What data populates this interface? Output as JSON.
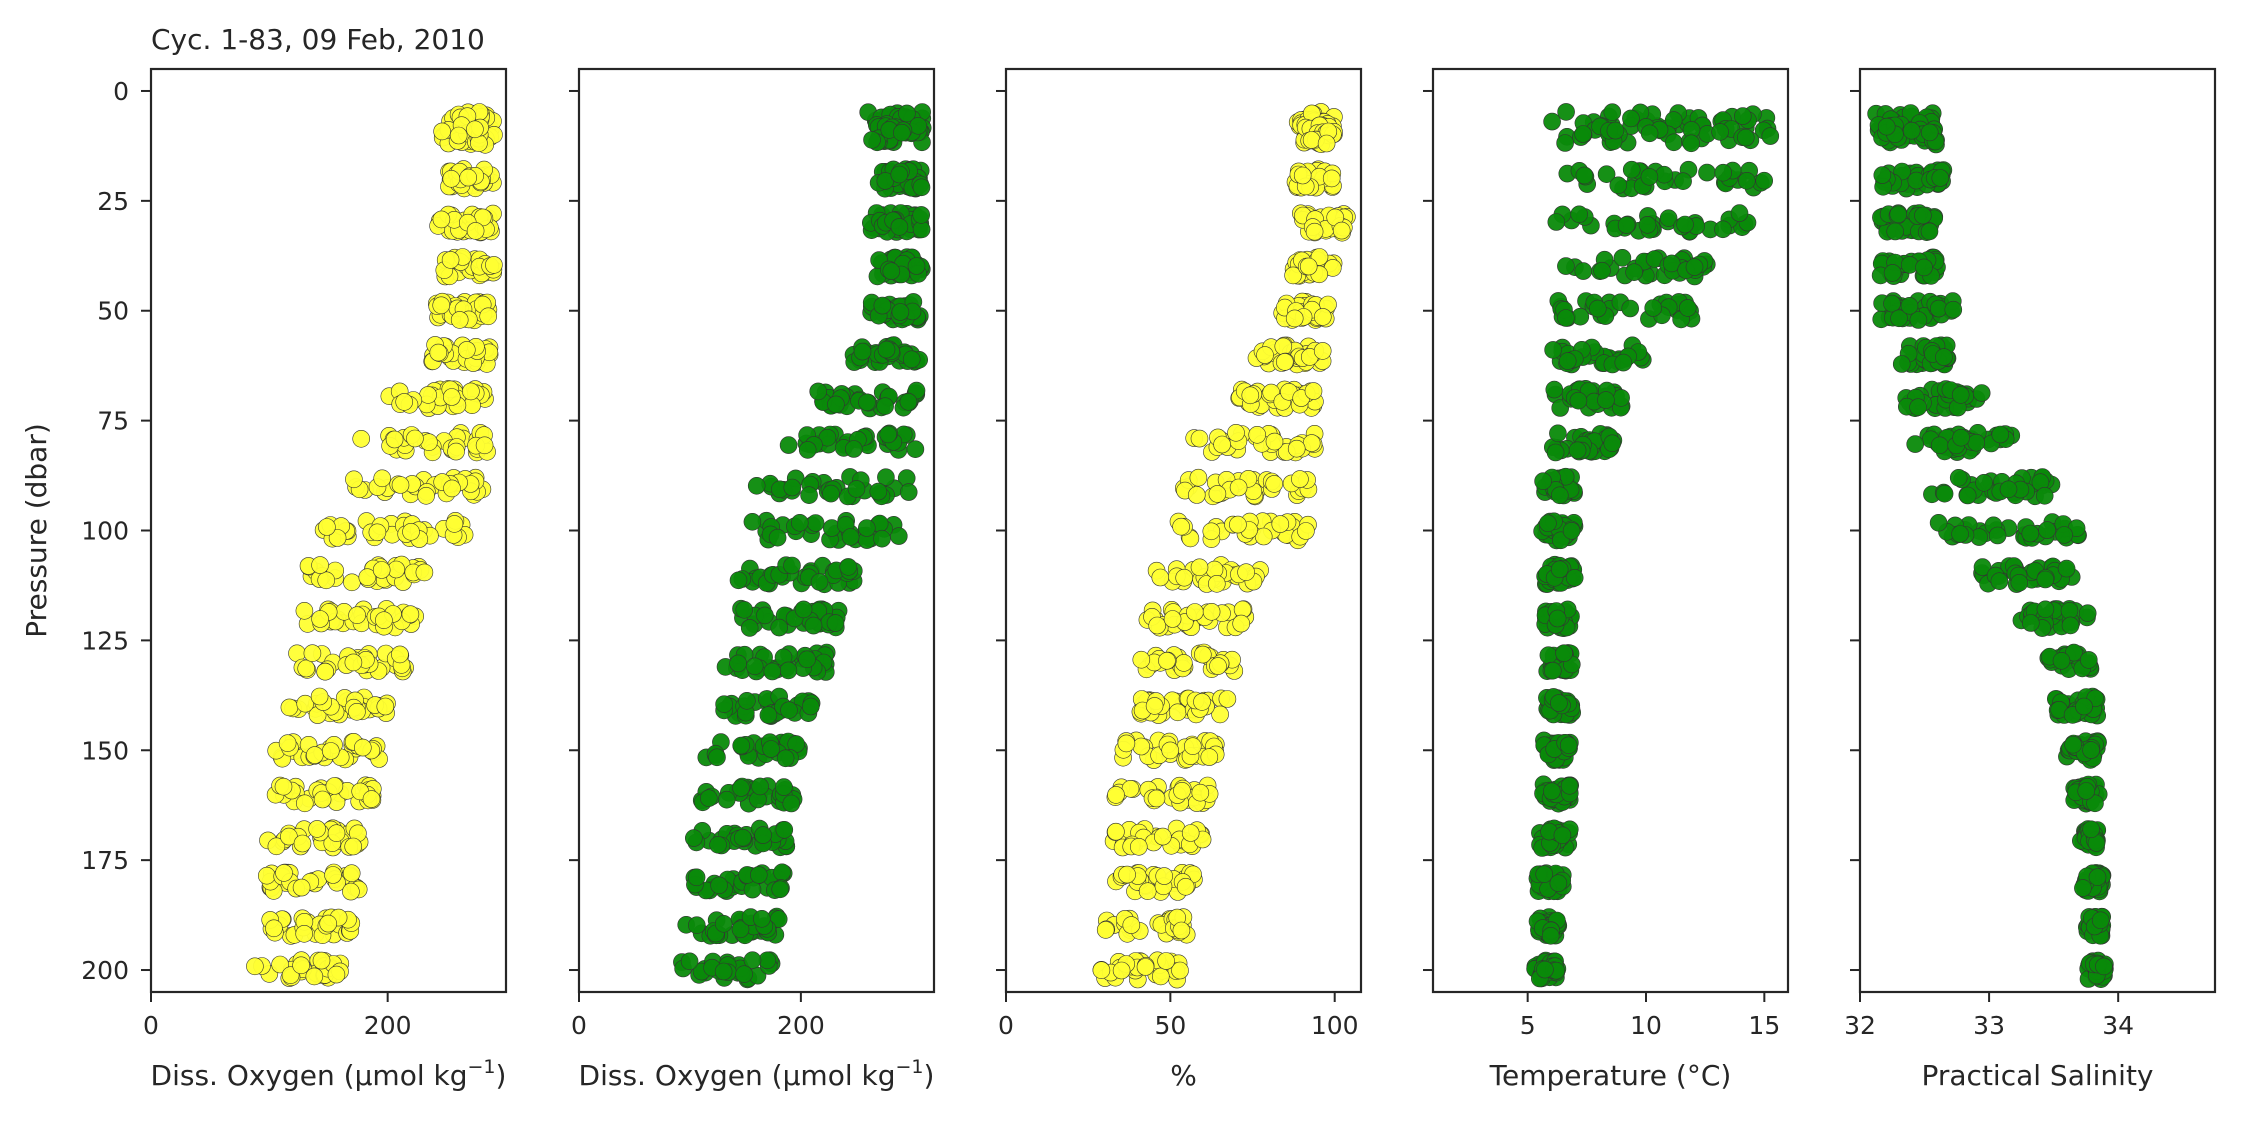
{
  "chart_data": [
    {
      "panel": 1,
      "type": "scatter",
      "title": "Cyc. 1-83, 09 Feb, 2010",
      "xlabel_main": "Diss. Oxygen (µmol kg",
      "xlabel_sup": "−1",
      "xlabel_close": ")",
      "ylabel": "Pressure (dbar)",
      "xlim": [
        0,
        300
      ],
      "ylim": [
        205,
        -5
      ],
      "xticks": [
        0,
        200
      ],
      "yticks": [
        0,
        25,
        50,
        75,
        100,
        125,
        150,
        175,
        200
      ],
      "color": "#ffff33",
      "levels": [
        {
          "p": 7,
          "min": 245,
          "max": 290
        },
        {
          "p": 10,
          "min": 245,
          "max": 290
        },
        {
          "p": 20,
          "min": 245,
          "max": 290
        },
        {
          "p": 30,
          "min": 240,
          "max": 290
        },
        {
          "p": 40,
          "min": 245,
          "max": 290
        },
        {
          "p": 50,
          "min": 240,
          "max": 288
        },
        {
          "p": 60,
          "min": 225,
          "max": 288
        },
        {
          "p": 70,
          "min": 200,
          "max": 285
        },
        {
          "p": 80,
          "min": 175,
          "max": 285
        },
        {
          "p": 90,
          "min": 155,
          "max": 282
        },
        {
          "p": 100,
          "min": 145,
          "max": 268
        },
        {
          "p": 110,
          "min": 130,
          "max": 235
        },
        {
          "p": 120,
          "min": 125,
          "max": 225
        },
        {
          "p": 130,
          "min": 120,
          "max": 215
        },
        {
          "p": 140,
          "min": 115,
          "max": 205
        },
        {
          "p": 150,
          "min": 105,
          "max": 195
        },
        {
          "p": 160,
          "min": 100,
          "max": 190
        },
        {
          "p": 170,
          "min": 95,
          "max": 180
        },
        {
          "p": 180,
          "min": 95,
          "max": 180
        },
        {
          "p": 190,
          "min": 90,
          "max": 170
        },
        {
          "p": 200,
          "min": 85,
          "max": 160
        }
      ]
    },
    {
      "panel": 2,
      "type": "scatter",
      "xlabel_main": "Diss. Oxygen (µmol kg",
      "xlabel_sup": "−1",
      "xlabel_close": ")",
      "xlim": [
        0,
        320
      ],
      "ylim": [
        205,
        -5
      ],
      "xticks": [
        0,
        200
      ],
      "color": "#0a8a0a",
      "levels": [
        {
          "p": 7,
          "min": 260,
          "max": 310
        },
        {
          "p": 10,
          "min": 260,
          "max": 310
        },
        {
          "p": 20,
          "min": 265,
          "max": 310
        },
        {
          "p": 30,
          "min": 260,
          "max": 310
        },
        {
          "p": 40,
          "min": 265,
          "max": 310
        },
        {
          "p": 50,
          "min": 262,
          "max": 308
        },
        {
          "p": 60,
          "min": 245,
          "max": 308
        },
        {
          "p": 70,
          "min": 215,
          "max": 305
        },
        {
          "p": 80,
          "min": 185,
          "max": 305
        },
        {
          "p": 90,
          "min": 160,
          "max": 300
        },
        {
          "p": 100,
          "min": 155,
          "max": 290
        },
        {
          "p": 110,
          "min": 140,
          "max": 252
        },
        {
          "p": 120,
          "min": 135,
          "max": 235
        },
        {
          "p": 130,
          "min": 130,
          "max": 225
        },
        {
          "p": 140,
          "min": 120,
          "max": 210
        },
        {
          "p": 150,
          "min": 110,
          "max": 200
        },
        {
          "p": 160,
          "min": 105,
          "max": 195
        },
        {
          "p": 170,
          "min": 100,
          "max": 190
        },
        {
          "p": 180,
          "min": 100,
          "max": 185
        },
        {
          "p": 190,
          "min": 95,
          "max": 180
        },
        {
          "p": 200,
          "min": 90,
          "max": 175
        }
      ]
    },
    {
      "panel": 3,
      "type": "scatter",
      "xlabel_main": "%",
      "xlim": [
        0,
        108
      ],
      "ylim": [
        205,
        -5
      ],
      "xticks": [
        0,
        50,
        100
      ],
      "color": "#ffff33",
      "levels": [
        {
          "p": 7,
          "min": 88,
          "max": 100
        },
        {
          "p": 10,
          "min": 88,
          "max": 100
        },
        {
          "p": 20,
          "min": 88,
          "max": 100
        },
        {
          "p": 30,
          "min": 88,
          "max": 104
        },
        {
          "p": 40,
          "min": 86,
          "max": 100
        },
        {
          "p": 50,
          "min": 83,
          "max": 98
        },
        {
          "p": 60,
          "min": 76,
          "max": 97
        },
        {
          "p": 70,
          "min": 67,
          "max": 95
        },
        {
          "p": 80,
          "min": 57,
          "max": 94
        },
        {
          "p": 90,
          "min": 50,
          "max": 93
        },
        {
          "p": 100,
          "min": 48,
          "max": 92
        },
        {
          "p": 110,
          "min": 44,
          "max": 78
        },
        {
          "p": 120,
          "min": 42,
          "max": 74
        },
        {
          "p": 130,
          "min": 40,
          "max": 70
        },
        {
          "p": 140,
          "min": 38,
          "max": 68
        },
        {
          "p": 150,
          "min": 35,
          "max": 64
        },
        {
          "p": 160,
          "min": 33,
          "max": 63
        },
        {
          "p": 170,
          "min": 32,
          "max": 60
        },
        {
          "p": 180,
          "min": 32,
          "max": 58
        },
        {
          "p": 190,
          "min": 30,
          "max": 55
        },
        {
          "p": 200,
          "min": 28,
          "max": 53
        }
      ]
    },
    {
      "panel": 4,
      "type": "scatter",
      "xlabel_main": "Temperature (°C)",
      "xlim": [
        1,
        16
      ],
      "ylim": [
        205,
        -5
      ],
      "xticks": [
        5,
        10,
        15
      ],
      "color": "#0a8a0a",
      "levels": [
        {
          "p": 7,
          "min": 6.0,
          "max": 15.5
        },
        {
          "p": 10,
          "min": 6.0,
          "max": 15.5
        },
        {
          "p": 20,
          "min": 6.0,
          "max": 15.3
        },
        {
          "p": 30,
          "min": 6.0,
          "max": 14.3
        },
        {
          "p": 40,
          "min": 6.0,
          "max": 12.8
        },
        {
          "p": 50,
          "min": 6.0,
          "max": 12.1
        },
        {
          "p": 60,
          "min": 6.0,
          "max": 10.2
        },
        {
          "p": 70,
          "min": 6.0,
          "max": 9.0
        },
        {
          "p": 80,
          "min": 6.0,
          "max": 8.7
        },
        {
          "p": 90,
          "min": 5.6,
          "max": 7.0
        },
        {
          "p": 100,
          "min": 5.5,
          "max": 7.0
        },
        {
          "p": 110,
          "min": 5.7,
          "max": 7.0
        },
        {
          "p": 120,
          "min": 5.7,
          "max": 6.9
        },
        {
          "p": 130,
          "min": 5.8,
          "max": 6.9
        },
        {
          "p": 140,
          "min": 5.8,
          "max": 6.9
        },
        {
          "p": 150,
          "min": 5.6,
          "max": 6.8
        },
        {
          "p": 160,
          "min": 5.5,
          "max": 6.8
        },
        {
          "p": 170,
          "min": 5.5,
          "max": 6.8
        },
        {
          "p": 180,
          "min": 5.4,
          "max": 6.5
        },
        {
          "p": 190,
          "min": 5.4,
          "max": 6.3
        },
        {
          "p": 200,
          "min": 5.3,
          "max": 6.3
        }
      ]
    },
    {
      "panel": 5,
      "type": "scatter",
      "xlabel_main": "Practical Salinity",
      "xlim": [
        32,
        34.75
      ],
      "ylim": [
        205,
        -5
      ],
      "xticks": [
        32,
        33,
        34
      ],
      "color": "#0a8a0a",
      "levels": [
        {
          "p": 7,
          "min": 32.05,
          "max": 32.6
        },
        {
          "p": 10,
          "min": 32.05,
          "max": 32.6
        },
        {
          "p": 20,
          "min": 32.15,
          "max": 32.65
        },
        {
          "p": 30,
          "min": 32.15,
          "max": 32.6
        },
        {
          "p": 40,
          "min": 32.15,
          "max": 32.6
        },
        {
          "p": 50,
          "min": 32.15,
          "max": 32.75
        },
        {
          "p": 60,
          "min": 32.3,
          "max": 32.7
        },
        {
          "p": 70,
          "min": 32.3,
          "max": 32.95
        },
        {
          "p": 80,
          "min": 32.4,
          "max": 33.2
        },
        {
          "p": 90,
          "min": 32.5,
          "max": 33.5
        },
        {
          "p": 100,
          "min": 32.55,
          "max": 33.7
        },
        {
          "p": 110,
          "min": 32.9,
          "max": 33.65
        },
        {
          "p": 120,
          "min": 33.25,
          "max": 33.8
        },
        {
          "p": 130,
          "min": 33.45,
          "max": 33.8
        },
        {
          "p": 140,
          "min": 33.5,
          "max": 33.85
        },
        {
          "p": 150,
          "min": 33.6,
          "max": 33.85
        },
        {
          "p": 160,
          "min": 33.65,
          "max": 33.85
        },
        {
          "p": 170,
          "min": 33.7,
          "max": 33.85
        },
        {
          "p": 180,
          "min": 33.72,
          "max": 33.88
        },
        {
          "p": 190,
          "min": 33.75,
          "max": 33.88
        },
        {
          "p": 200,
          "min": 33.75,
          "max": 33.9
        }
      ]
    }
  ]
}
